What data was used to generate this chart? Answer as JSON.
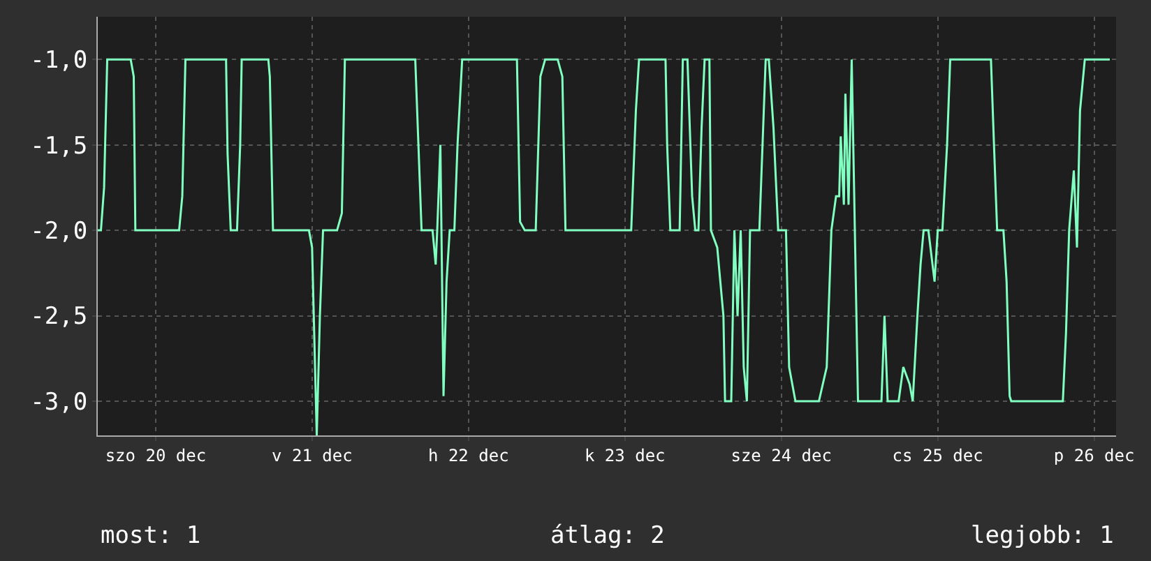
{
  "chart_data": {
    "type": "line",
    "x": [
      "--12-19T15:07",
      "--12-19T15:36",
      "--12-19T16:05",
      "--12-19T16:34",
      "--12-19T20:10",
      "--12-19T20:38",
      "--12-19T20:53",
      "--12-20T03:36",
      "--12-20T04:05",
      "--12-20T04:34",
      "--12-20T10:48",
      "--12-20T11:02",
      "--12-20T11:31",
      "--12-20T12:29",
      "--12-20T12:58",
      "--12-20T13:12",
      "--12-20T17:17",
      "--12-20T17:31",
      "--12-20T18:00",
      "--12-20T23:31",
      "--12-21T00:00",
      "--12-21T00:43",
      "--12-21T01:12",
      "--12-21T01:41",
      "--12-21T03:50",
      "--12-21T04:34",
      "--12-21T05:02",
      "--12-21T15:50",
      "--12-21T16:19",
      "--12-21T16:48",
      "--12-21T18:29",
      "--12-21T18:58",
      "--12-21T19:12",
      "--12-21T19:41",
      "--12-21T20:10",
      "--12-21T20:38",
      "--12-21T21:07",
      "--12-21T21:50",
      "--12-21T22:19",
      "--12-21T23:02",
      "--12-22T07:26",
      "--12-22T07:55",
      "--12-22T08:38",
      "--12-22T10:19",
      "--12-22T11:02",
      "--12-22T11:46",
      "--12-22T13:41",
      "--12-22T14:24",
      "--12-22T14:53",
      "--12-23T00:58",
      "--12-23T01:41",
      "--12-23T02:10",
      "--12-23T06:14",
      "--12-23T06:29",
      "--12-23T06:58",
      "--12-23T08:24",
      "--12-23T08:53",
      "--12-23T09:36",
      "--12-23T10:19",
      "--12-23T10:48",
      "--12-23T11:17",
      "--12-23T11:46",
      "--12-23T12:14",
      "--12-23T12:58",
      "--12-23T13:12",
      "--12-23T14:10",
      "--12-23T15:07",
      "--12-23T15:22",
      "--12-23T16:19",
      "--12-23T16:48",
      "--12-23T17:17",
      "--12-23T17:46",
      "--12-23T18:14",
      "--12-23T18:43",
      "--12-23T19:12",
      "--12-23T20:38",
      "--12-23T21:36",
      "--12-23T22:05",
      "--12-23T22:48",
      "--12-23T23:31",
      "--12-24T00:43",
      "--12-24T01:12",
      "--12-24T02:10",
      "--12-24T05:46",
      "--12-24T06:58",
      "--12-24T07:41",
      "--12-24T08:24",
      "--12-24T08:53",
      "--12-24T09:07",
      "--12-24T09:36",
      "--12-24T09:50",
      "--12-24T10:19",
      "--12-24T10:48",
      "--12-24T11:17",
      "--12-24T11:46",
      "--12-24T15:22",
      "--12-24T15:50",
      "--12-24T16:19",
      "--12-24T18:00",
      "--12-24T18:43",
      "--12-24T19:41",
      "--12-24T20:10",
      "--12-24T20:53",
      "--12-24T21:22",
      "--12-24T21:50",
      "--12-24T22:34",
      "--12-24T23:31",
      "--12-25T00:00",
      "--12-25T00:43",
      "--12-25T01:26",
      "--12-25T01:55",
      "--12-25T08:10",
      "--12-25T08:38",
      "--12-25T09:07",
      "--12-25T10:05",
      "--12-25T10:34",
      "--12-25T11:02",
      "--12-25T11:17",
      "--12-25T19:12",
      "--12-25T19:41",
      "--12-25T20:10",
      "--12-25T20:53",
      "--12-25T21:22",
      "--12-25T21:50",
      "--12-25T22:34",
      "--12-26T02:24"
    ],
    "series": [
      {
        "color": "#80ffc0",
        "values": [
          -2.0,
          -2.0,
          -1.75,
          -1.0,
          -1.0,
          -1.1,
          -2.0,
          -2.0,
          -1.8,
          -1.0,
          -1.0,
          -1.55,
          -2.0,
          -2.0,
          -1.5,
          -1.0,
          -1.0,
          -1.1,
          -2.0,
          -2.0,
          -2.1,
          -3.2,
          -2.5,
          -2.0,
          -2.0,
          -1.9,
          -1.0,
          -1.0,
          -1.5,
          -2.0,
          -2.0,
          -2.2,
          -2.0,
          -1.5,
          -2.97,
          -2.3,
          -2.0,
          -2.0,
          -1.5,
          -1.0,
          -1.0,
          -1.95,
          -2.0,
          -2.0,
          -1.1,
          -1.0,
          -1.0,
          -1.1,
          -2.0,
          -2.0,
          -1.3,
          -1.0,
          -1.0,
          -1.5,
          -2.0,
          -2.0,
          -1.0,
          -1.0,
          -1.8,
          -2.0,
          -2.0,
          -1.4,
          -1.0,
          -1.0,
          -2.0,
          -2.1,
          -2.5,
          -3.0,
          -3.0,
          -2.0,
          -2.5,
          -2.0,
          -2.8,
          -3.0,
          -2.0,
          -2.0,
          -1.0,
          -1.0,
          -1.4,
          -2.0,
          -2.0,
          -2.8,
          -3.0,
          -3.0,
          -2.8,
          -2.0,
          -1.8,
          -1.8,
          -1.45,
          -1.85,
          -1.2,
          -1.85,
          -1.0,
          -2.0,
          -3.0,
          -3.0,
          -2.5,
          -3.0,
          -3.0,
          -2.8,
          -2.9,
          -3.0,
          -2.5,
          -2.2,
          -2.0,
          -2.0,
          -2.3,
          -2.0,
          -2.0,
          -1.5,
          -1.0,
          -1.0,
          -1.5,
          -2.0,
          -2.0,
          -2.3,
          -2.97,
          -3.0,
          -3.0,
          -2.6,
          -2.0,
          -1.65,
          -2.1,
          -1.3,
          -1.0,
          -1.0
        ]
      }
    ],
    "xlim": [
      "--12-19T15:07",
      "--12-26T03:22"
    ],
    "xticks": [
      {
        "value": "--12-20",
        "label": "szo 20 dec"
      },
      {
        "value": "--12-21",
        "label": "v 21 dec"
      },
      {
        "value": "--12-22",
        "label": "h 22 dec"
      },
      {
        "value": "--12-23",
        "label": "k 23 dec"
      },
      {
        "value": "--12-24",
        "label": "sze 24 dec"
      },
      {
        "value": "--12-25",
        "label": "cs 25 dec"
      },
      {
        "value": "--12-26",
        "label": "p 26 dec"
      }
    ],
    "ylim": [
      -3.2,
      -0.75
    ],
    "yticks": [
      {
        "value": -3,
        "label": "-3,0"
      },
      {
        "value": -2.5,
        "label": "-2,5"
      },
      {
        "value": -2,
        "label": "-2,0"
      },
      {
        "value": -1.5,
        "label": "-1,5"
      },
      {
        "value": -1,
        "label": "-1,0"
      }
    ],
    "grid": true,
    "legend": false,
    "annotations": [
      "most: 1",
      "átlag: 2",
      "legjobb: 1"
    ]
  }
}
